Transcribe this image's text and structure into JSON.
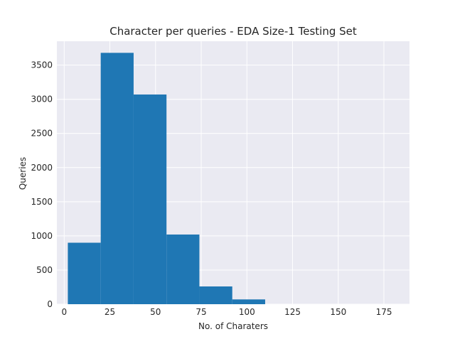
{
  "chart_data": {
    "type": "bar",
    "title": "Character per queries - EDA Size-1 Testing Set",
    "xlabel": "No. of Charaters",
    "ylabel": "Queries",
    "xlim": [
      -4,
      189
    ],
    "ylim": [
      0,
      3850
    ],
    "xticks": [
      0,
      25,
      50,
      75,
      100,
      125,
      150,
      175
    ],
    "yticks": [
      0,
      500,
      1000,
      1500,
      2000,
      2500,
      3000,
      3500
    ],
    "bins": [
      {
        "x0": 2,
        "x1": 20,
        "value": 900
      },
      {
        "x0": 20,
        "x1": 38,
        "value": 3680
      },
      {
        "x0": 38,
        "x1": 56,
        "value": 3070
      },
      {
        "x0": 56,
        "x1": 74,
        "value": 1020
      },
      {
        "x0": 74,
        "x1": 92,
        "value": 260
      },
      {
        "x0": 92,
        "x1": 110,
        "value": 70
      },
      {
        "x0": 110,
        "x1": 128,
        "value": 0
      },
      {
        "x0": 128,
        "x1": 146,
        "value": 0
      },
      {
        "x0": 146,
        "x1": 164,
        "value": 0
      },
      {
        "x0": 164,
        "x1": 182,
        "value": 0
      }
    ],
    "grid": true,
    "colors": {
      "bar": "#1f77b4",
      "background": "#eaeaf2",
      "grid": "#ffffff"
    }
  }
}
